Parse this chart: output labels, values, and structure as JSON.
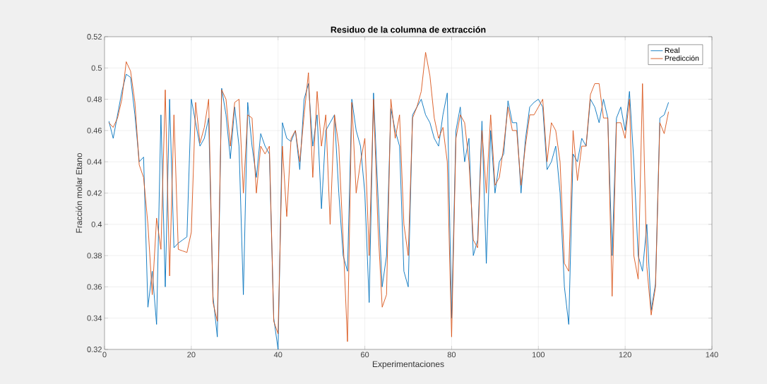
{
  "chart_data": {
    "type": "line",
    "title": "Residuo de la columna de extracción",
    "xlabel": "Experimentaciones",
    "ylabel": "Fracción molar Etano",
    "x": [
      1,
      2,
      3,
      4,
      5,
      6,
      7,
      8,
      9,
      10,
      11,
      12,
      13,
      14,
      15,
      16,
      17,
      18,
      19,
      20,
      21,
      22,
      23,
      24,
      25,
      26,
      27,
      28,
      29,
      30,
      31,
      32,
      33,
      34,
      35,
      36,
      37,
      38,
      39,
      40,
      41,
      42,
      43,
      44,
      45,
      46,
      47,
      48,
      49,
      50,
      51,
      52,
      53,
      54,
      55,
      56,
      57,
      58,
      59,
      60,
      61,
      62,
      63,
      64,
      65,
      66,
      67,
      68,
      69,
      70,
      71,
      72,
      73,
      74,
      75,
      76,
      77,
      78,
      79,
      80,
      81,
      82,
      83,
      84,
      85,
      86,
      87,
      88,
      89,
      90,
      91,
      92,
      93,
      94,
      95,
      96,
      97,
      98,
      99,
      100,
      101,
      102,
      103,
      104,
      105,
      106,
      107,
      108,
      109,
      110,
      111,
      112,
      113,
      114,
      115,
      116,
      117,
      118,
      119,
      120,
      121,
      122,
      123,
      124,
      125,
      126,
      127,
      128,
      129,
      130
    ],
    "series": [
      {
        "name": "Real",
        "color": "#0072bd",
        "values": [
          0.466,
          0.455,
          0.47,
          0.485,
          0.496,
          0.494,
          0.47,
          0.44,
          0.443,
          0.347,
          0.37,
          0.336,
          0.47,
          0.36,
          0.48,
          0.385,
          0.388,
          0.39,
          0.392,
          0.48,
          0.465,
          0.45,
          0.455,
          0.468,
          0.354,
          0.328,
          0.487,
          0.47,
          0.442,
          0.475,
          0.45,
          0.355,
          0.478,
          0.45,
          0.43,
          0.458,
          0.45,
          0.445,
          0.34,
          0.32,
          0.465,
          0.455,
          0.453,
          0.46,
          0.435,
          0.48,
          0.49,
          0.45,
          0.47,
          0.41,
          0.46,
          0.465,
          0.47,
          0.42,
          0.38,
          0.37,
          0.48,
          0.46,
          0.45,
          0.42,
          0.35,
          0.484,
          0.42,
          0.36,
          0.38,
          0.474,
          0.46,
          0.45,
          0.37,
          0.36,
          0.47,
          0.475,
          0.48,
          0.47,
          0.465,
          0.455,
          0.45,
          0.47,
          0.484,
          0.34,
          0.46,
          0.475,
          0.44,
          0.455,
          0.38,
          0.39,
          0.466,
          0.375,
          0.46,
          0.42,
          0.44,
          0.445,
          0.479,
          0.465,
          0.465,
          0.42,
          0.454,
          0.475,
          0.478,
          0.48,
          0.475,
          0.435,
          0.44,
          0.45,
          0.42,
          0.36,
          0.336,
          0.445,
          0.44,
          0.455,
          0.45,
          0.48,
          0.475,
          0.465,
          0.48,
          0.468,
          0.38,
          0.468,
          0.475,
          0.46,
          0.485,
          0.44,
          0.38,
          0.37,
          0.4,
          0.345,
          0.362,
          0.468,
          0.47,
          0.478
        ]
      },
      {
        "name": "Predicción",
        "color": "#d95319",
        "values": [
          0.465,
          0.462,
          0.468,
          0.48,
          0.504,
          0.498,
          0.478,
          0.438,
          0.43,
          0.4,
          0.355,
          0.404,
          0.384,
          0.486,
          0.367,
          0.47,
          0.384,
          0.383,
          0.382,
          0.395,
          0.478,
          0.452,
          0.462,
          0.48,
          0.35,
          0.338,
          0.486,
          0.48,
          0.45,
          0.478,
          0.48,
          0.42,
          0.47,
          0.468,
          0.42,
          0.45,
          0.445,
          0.45,
          0.338,
          0.33,
          0.45,
          0.405,
          0.455,
          0.46,
          0.44,
          0.47,
          0.497,
          0.43,
          0.485,
          0.45,
          0.47,
          0.4,
          0.47,
          0.45,
          0.39,
          0.325,
          0.478,
          0.42,
          0.44,
          0.455,
          0.38,
          0.48,
          0.4,
          0.347,
          0.355,
          0.48,
          0.455,
          0.47,
          0.4,
          0.38,
          0.468,
          0.475,
          0.485,
          0.51,
          0.495,
          0.468,
          0.455,
          0.462,
          0.44,
          0.328,
          0.455,
          0.47,
          0.465,
          0.44,
          0.39,
          0.385,
          0.46,
          0.42,
          0.47,
          0.425,
          0.43,
          0.45,
          0.475,
          0.46,
          0.46,
          0.425,
          0.45,
          0.47,
          0.47,
          0.475,
          0.48,
          0.44,
          0.465,
          0.46,
          0.44,
          0.375,
          0.37,
          0.46,
          0.428,
          0.45,
          0.45,
          0.483,
          0.49,
          0.49,
          0.468,
          0.468,
          0.354,
          0.465,
          0.465,
          0.455,
          0.48,
          0.38,
          0.365,
          0.49,
          0.373,
          0.342,
          0.36,
          0.465,
          0.458,
          0.472
        ]
      }
    ],
    "xlim": [
      0,
      140
    ],
    "ylim": [
      0.32,
      0.52
    ],
    "xticks": [
      0,
      20,
      40,
      60,
      80,
      100,
      120,
      140
    ],
    "yticks": [
      0.32,
      0.34,
      0.36,
      0.38,
      0.4,
      0.42,
      0.44,
      0.46,
      0.48,
      0.5,
      0.52
    ],
    "grid": true,
    "legend": "top right",
    "marker": "none",
    "line_style": "solid"
  }
}
